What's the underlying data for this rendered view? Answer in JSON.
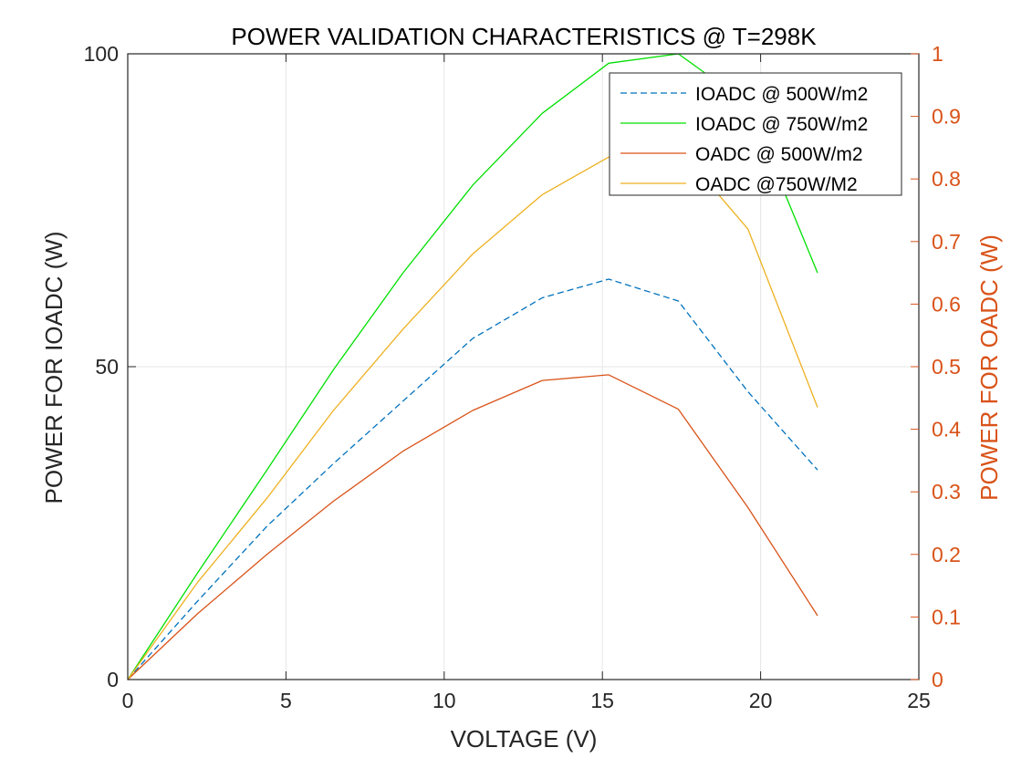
{
  "chart_data": {
    "type": "line",
    "title": "POWER VALIDATION CHARACTERISTICS @ T=298K",
    "xlabel": "VOLTAGE (V)",
    "ylabel": "POWER FOR IOADC (W)",
    "ylabel_right": "POWER FOR OADC (W)",
    "xlim": [
      0,
      25
    ],
    "ylim": [
      0,
      100
    ],
    "ylim_right": [
      0,
      1
    ],
    "x_ticks": [
      "0",
      "5",
      "10",
      "15",
      "20",
      "25"
    ],
    "y_ticks": [
      "0",
      "50",
      "100"
    ],
    "y_ticks_right": [
      "0",
      "0.1",
      "0.2",
      "0.3",
      "0.4",
      "0.5",
      "0.6",
      "0.7",
      "0.8",
      "0.9",
      "1"
    ],
    "grid": true,
    "legend_position": "top-right",
    "right_axis_color": "#D95319",
    "series": [
      {
        "name": "IOADC @ 500W/m2",
        "axis": "left",
        "color": "#0072BD",
        "dash": "dashed",
        "x": [
          0,
          2.2,
          4.4,
          6.5,
          8.7,
          10.9,
          13.1,
          15.2,
          17.4,
          19.6,
          21.8
        ],
        "y": [
          0,
          12.5,
          24.5,
          34.5,
          44.5,
          54.5,
          61,
          64,
          60.5,
          46,
          33.5
        ]
      },
      {
        "name": "IOADC @ 750W/m2",
        "axis": "left",
        "color": "#00E000",
        "dash": "solid",
        "x": [
          0,
          2.2,
          4.4,
          6.5,
          8.7,
          10.9,
          13.1,
          15.2,
          17.4,
          19.6,
          21.8
        ],
        "y": [
          0,
          17,
          33.5,
          49.5,
          65,
          79,
          90.5,
          98.5,
          100,
          92,
          65
        ]
      },
      {
        "name": "OADC @ 500W/m2",
        "axis": "right",
        "color": "#D95319",
        "dash": "solid",
        "x": [
          0,
          2.2,
          4.4,
          6.5,
          8.7,
          10.9,
          13.1,
          15.2,
          17.4,
          19.6,
          21.8
        ],
        "y": [
          0,
          0.105,
          0.2,
          0.285,
          0.365,
          0.43,
          0.478,
          0.487,
          0.432,
          0.275,
          0.102
        ]
      },
      {
        "name": "OADC @750W/M2",
        "axis": "right",
        "color": "#EDB120",
        "dash": "solid",
        "x": [
          0,
          2.2,
          4.4,
          6.5,
          8.7,
          10.9,
          13.1,
          15.2,
          17.4,
          19.6,
          21.8
        ],
        "y": [
          0,
          0.155,
          0.29,
          0.43,
          0.56,
          0.68,
          0.775,
          0.835,
          0.85,
          0.72,
          0.435
        ]
      }
    ]
  }
}
